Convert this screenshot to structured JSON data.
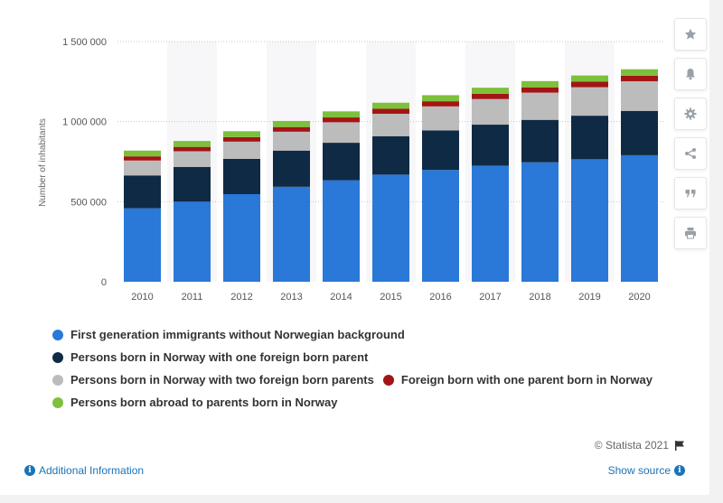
{
  "sidebar": {
    "buttons": [
      {
        "name": "star-icon"
      },
      {
        "name": "bell-icon"
      },
      {
        "name": "gear-icon"
      },
      {
        "name": "share-icon"
      },
      {
        "name": "quote-icon"
      },
      {
        "name": "print-icon"
      }
    ]
  },
  "footer": {
    "credits": "© Statista 2021",
    "additional_info": "Additional Information",
    "show_source": "Show source"
  },
  "chart_data": {
    "type": "bar",
    "stacked": true,
    "title": "",
    "xlabel": "",
    "ylabel": "Number of inhabitants",
    "ylim": [
      0,
      1500000
    ],
    "yticks": [
      0,
      500000,
      1000000,
      1500000
    ],
    "ytick_labels": [
      "0",
      "500 000",
      "1 000 000",
      "1 500 000"
    ],
    "categories": [
      "2010",
      "2011",
      "2012",
      "2013",
      "2014",
      "2015",
      "2016",
      "2017",
      "2018",
      "2019",
      "2020"
    ],
    "grid": "horizontal dotted",
    "legend_position": "bottom",
    "series": [
      {
        "name": "First generation immigrants without Norwegian background",
        "color": "#2a78d8",
        "values": [
          459000,
          500000,
          547000,
          593000,
          634000,
          669000,
          698000,
          725000,
          746000,
          765000,
          790000
        ]
      },
      {
        "name": "Persons born in Norway with one foreign born parent",
        "color": "#0f2a44",
        "values": [
          205000,
          217000,
          220000,
          226000,
          234000,
          240000,
          247000,
          256000,
          265000,
          272000,
          277000
        ]
      },
      {
        "name": "Persons born in Norway with two foreign born parents",
        "color": "#bcbcbc",
        "values": [
          93000,
          98000,
          108000,
          118000,
          128000,
          140000,
          150000,
          160000,
          170000,
          178000,
          185000
        ]
      },
      {
        "name": "Foreign born with one parent born in Norway",
        "color": "#a31515",
        "values": [
          26000,
          27000,
          28000,
          29000,
          30000,
          31000,
          32000,
          32000,
          33000,
          34000,
          35000
        ]
      },
      {
        "name": "Persons born abroad to parents born in Norway",
        "color": "#7dc03c",
        "values": [
          36000,
          37000,
          37000,
          38000,
          38000,
          38000,
          38000,
          39000,
          39000,
          39000,
          40000
        ]
      }
    ]
  }
}
